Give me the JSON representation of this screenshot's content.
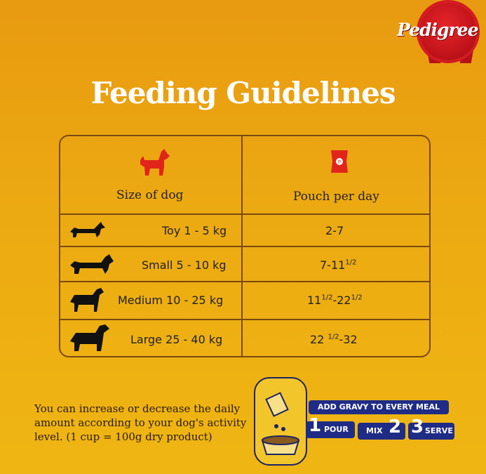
{
  "brand": {
    "logo_text": "Pedigree"
  },
  "title": "Feeding Guidelines",
  "table": {
    "headers": {
      "size": "Size of dog",
      "pouch": "Pouch per day"
    },
    "rows": [
      {
        "size": "Toy  1 - 5 kg",
        "pouch_main": "2-7",
        "pouch_sup": "",
        "pouch_tail": ""
      },
      {
        "size": "Small  5 - 10 kg",
        "pouch_main": "7-11",
        "pouch_sup": "1/2",
        "pouch_tail": ""
      },
      {
        "size": "Medium  10 - 25 kg",
        "pouch_main": "11",
        "pouch_sup": "1/2",
        "pouch_tail": "-22",
        "pouch_sup2": "1/2"
      },
      {
        "size": "Large  25 - 40 kg",
        "pouch_main": "22 ",
        "pouch_sup": "1/2",
        "pouch_tail": "-32"
      }
    ]
  },
  "note": "You can increase or decrease the daily amount according to your dog's activity level. (1 cup = 100g dry product)",
  "steps": {
    "banner": "ADD GRAVY TO EVERY MEAL",
    "pour_num": "1",
    "pour": "POUR",
    "mix": "MIX",
    "mix_num": "2",
    "serve_num": "3",
    "serve": "SERVE"
  },
  "colors": {
    "dog_icon": "#e0251b",
    "pouch_icon": "#e0251b",
    "border": "#7a4a12",
    "banner": "#1f2c86"
  },
  "icons": [
    "dog-icon",
    "pouch-icon",
    "dachshund-icon",
    "dog-small-icon",
    "dog-medium-icon",
    "dog-large-icon",
    "bowl-icon"
  ]
}
